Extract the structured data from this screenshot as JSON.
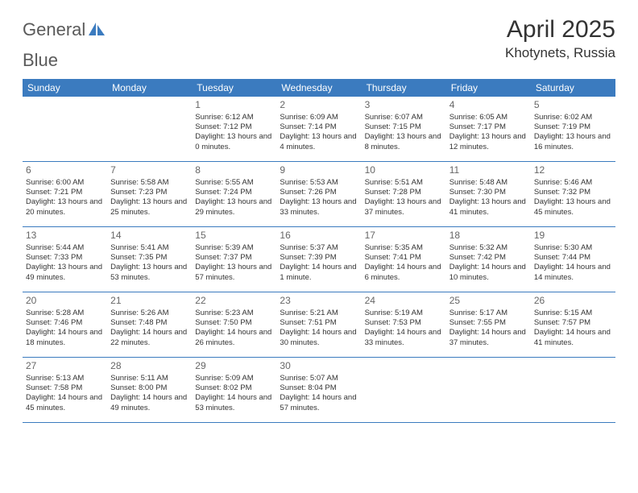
{
  "logo": {
    "word1": "General",
    "word2": "Blue"
  },
  "title": "April 2025",
  "location": "Khotynets, Russia",
  "colors": {
    "header_bg": "#3b7bbf",
    "header_text": "#ffffff",
    "row_border": "#3b7bbf",
    "body_text": "#333333",
    "daynum": "#666666",
    "logo_text": "#5a5a5a",
    "logo_sail": "#3b7bbf"
  },
  "weekdays": [
    "Sunday",
    "Monday",
    "Tuesday",
    "Wednesday",
    "Thursday",
    "Friday",
    "Saturday"
  ],
  "weeks": [
    [
      null,
      null,
      {
        "n": "1",
        "sr": "Sunrise: 6:12 AM",
        "ss": "Sunset: 7:12 PM",
        "dl": "Daylight: 13 hours and 0 minutes."
      },
      {
        "n": "2",
        "sr": "Sunrise: 6:09 AM",
        "ss": "Sunset: 7:14 PM",
        "dl": "Daylight: 13 hours and 4 minutes."
      },
      {
        "n": "3",
        "sr": "Sunrise: 6:07 AM",
        "ss": "Sunset: 7:15 PM",
        "dl": "Daylight: 13 hours and 8 minutes."
      },
      {
        "n": "4",
        "sr": "Sunrise: 6:05 AM",
        "ss": "Sunset: 7:17 PM",
        "dl": "Daylight: 13 hours and 12 minutes."
      },
      {
        "n": "5",
        "sr": "Sunrise: 6:02 AM",
        "ss": "Sunset: 7:19 PM",
        "dl": "Daylight: 13 hours and 16 minutes."
      }
    ],
    [
      {
        "n": "6",
        "sr": "Sunrise: 6:00 AM",
        "ss": "Sunset: 7:21 PM",
        "dl": "Daylight: 13 hours and 20 minutes."
      },
      {
        "n": "7",
        "sr": "Sunrise: 5:58 AM",
        "ss": "Sunset: 7:23 PM",
        "dl": "Daylight: 13 hours and 25 minutes."
      },
      {
        "n": "8",
        "sr": "Sunrise: 5:55 AM",
        "ss": "Sunset: 7:24 PM",
        "dl": "Daylight: 13 hours and 29 minutes."
      },
      {
        "n": "9",
        "sr": "Sunrise: 5:53 AM",
        "ss": "Sunset: 7:26 PM",
        "dl": "Daylight: 13 hours and 33 minutes."
      },
      {
        "n": "10",
        "sr": "Sunrise: 5:51 AM",
        "ss": "Sunset: 7:28 PM",
        "dl": "Daylight: 13 hours and 37 minutes."
      },
      {
        "n": "11",
        "sr": "Sunrise: 5:48 AM",
        "ss": "Sunset: 7:30 PM",
        "dl": "Daylight: 13 hours and 41 minutes."
      },
      {
        "n": "12",
        "sr": "Sunrise: 5:46 AM",
        "ss": "Sunset: 7:32 PM",
        "dl": "Daylight: 13 hours and 45 minutes."
      }
    ],
    [
      {
        "n": "13",
        "sr": "Sunrise: 5:44 AM",
        "ss": "Sunset: 7:33 PM",
        "dl": "Daylight: 13 hours and 49 minutes."
      },
      {
        "n": "14",
        "sr": "Sunrise: 5:41 AM",
        "ss": "Sunset: 7:35 PM",
        "dl": "Daylight: 13 hours and 53 minutes."
      },
      {
        "n": "15",
        "sr": "Sunrise: 5:39 AM",
        "ss": "Sunset: 7:37 PM",
        "dl": "Daylight: 13 hours and 57 minutes."
      },
      {
        "n": "16",
        "sr": "Sunrise: 5:37 AM",
        "ss": "Sunset: 7:39 PM",
        "dl": "Daylight: 14 hours and 1 minute."
      },
      {
        "n": "17",
        "sr": "Sunrise: 5:35 AM",
        "ss": "Sunset: 7:41 PM",
        "dl": "Daylight: 14 hours and 6 minutes."
      },
      {
        "n": "18",
        "sr": "Sunrise: 5:32 AM",
        "ss": "Sunset: 7:42 PM",
        "dl": "Daylight: 14 hours and 10 minutes."
      },
      {
        "n": "19",
        "sr": "Sunrise: 5:30 AM",
        "ss": "Sunset: 7:44 PM",
        "dl": "Daylight: 14 hours and 14 minutes."
      }
    ],
    [
      {
        "n": "20",
        "sr": "Sunrise: 5:28 AM",
        "ss": "Sunset: 7:46 PM",
        "dl": "Daylight: 14 hours and 18 minutes."
      },
      {
        "n": "21",
        "sr": "Sunrise: 5:26 AM",
        "ss": "Sunset: 7:48 PM",
        "dl": "Daylight: 14 hours and 22 minutes."
      },
      {
        "n": "22",
        "sr": "Sunrise: 5:23 AM",
        "ss": "Sunset: 7:50 PM",
        "dl": "Daylight: 14 hours and 26 minutes."
      },
      {
        "n": "23",
        "sr": "Sunrise: 5:21 AM",
        "ss": "Sunset: 7:51 PM",
        "dl": "Daylight: 14 hours and 30 minutes."
      },
      {
        "n": "24",
        "sr": "Sunrise: 5:19 AM",
        "ss": "Sunset: 7:53 PM",
        "dl": "Daylight: 14 hours and 33 minutes."
      },
      {
        "n": "25",
        "sr": "Sunrise: 5:17 AM",
        "ss": "Sunset: 7:55 PM",
        "dl": "Daylight: 14 hours and 37 minutes."
      },
      {
        "n": "26",
        "sr": "Sunrise: 5:15 AM",
        "ss": "Sunset: 7:57 PM",
        "dl": "Daylight: 14 hours and 41 minutes."
      }
    ],
    [
      {
        "n": "27",
        "sr": "Sunrise: 5:13 AM",
        "ss": "Sunset: 7:58 PM",
        "dl": "Daylight: 14 hours and 45 minutes."
      },
      {
        "n": "28",
        "sr": "Sunrise: 5:11 AM",
        "ss": "Sunset: 8:00 PM",
        "dl": "Daylight: 14 hours and 49 minutes."
      },
      {
        "n": "29",
        "sr": "Sunrise: 5:09 AM",
        "ss": "Sunset: 8:02 PM",
        "dl": "Daylight: 14 hours and 53 minutes."
      },
      {
        "n": "30",
        "sr": "Sunrise: 5:07 AM",
        "ss": "Sunset: 8:04 PM",
        "dl": "Daylight: 14 hours and 57 minutes."
      },
      null,
      null,
      null
    ]
  ]
}
